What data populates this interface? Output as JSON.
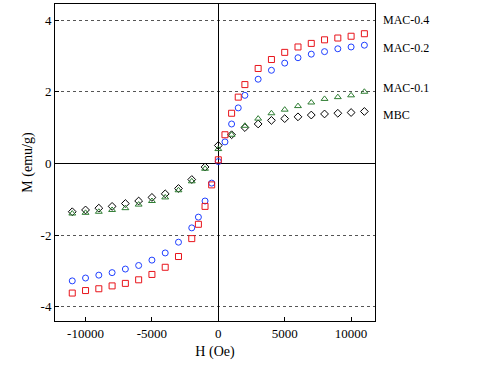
{
  "chart_data": {
    "type": "scatter",
    "x_label": "H (Oe)",
    "y_label": "M (emu/g)",
    "xlim": [
      -12300,
      11800
    ],
    "ylim": [
      -4.4,
      4.45
    ],
    "xticks": [
      -10000,
      -5000,
      0,
      5000,
      10000
    ],
    "yticks": [
      -4,
      -2,
      0,
      2,
      4
    ],
    "grid": true,
    "series": [
      {
        "name": "MBC",
        "color": "#000000",
        "marker": "diamond",
        "x": [
          -11000,
          -10000,
          -9000,
          -8000,
          -7000,
          -6000,
          -5000,
          -4000,
          -3000,
          -2000,
          -1000,
          0,
          1000,
          2000,
          3000,
          4000,
          5000,
          6000,
          7000,
          8000,
          9000,
          10000,
          11000
        ],
        "values": [
          -1.35,
          -1.3,
          -1.25,
          -1.2,
          -1.12,
          -1.05,
          -0.95,
          -0.85,
          -0.7,
          -0.45,
          -0.1,
          0.5,
          0.8,
          1.0,
          1.1,
          1.2,
          1.25,
          1.3,
          1.35,
          1.38,
          1.4,
          1.42,
          1.45
        ]
      },
      {
        "name": "MAC-0.1",
        "color": "#2e7d32",
        "marker": "triangle",
        "x": [
          -11000,
          -10000,
          -9000,
          -8000,
          -7000,
          -6000,
          -5000,
          -4000,
          -3000,
          -2000,
          -1000,
          0,
          1000,
          2000,
          3000,
          4000,
          5000,
          6000,
          7000,
          8000,
          9000,
          10000,
          11000
        ],
        "values": [
          -1.4,
          -1.38,
          -1.35,
          -1.3,
          -1.25,
          -1.15,
          -1.05,
          -0.95,
          -0.75,
          -0.5,
          -0.15,
          0.4,
          0.8,
          1.05,
          1.25,
          1.4,
          1.5,
          1.6,
          1.7,
          1.8,
          1.85,
          1.9,
          2.0
        ]
      },
      {
        "name": "MAC-0.2",
        "color": "#1f3fff",
        "marker": "circle",
        "x": [
          -11000,
          -10000,
          -9000,
          -8000,
          -7000,
          -6000,
          -5000,
          -4000,
          -3000,
          -2000,
          -1500,
          -1000,
          -500,
          0,
          500,
          1000,
          1500,
          2000,
          3000,
          4000,
          5000,
          6000,
          7000,
          8000,
          9000,
          10000,
          11000
        ],
        "values": [
          -3.28,
          -3.2,
          -3.12,
          -3.05,
          -2.95,
          -2.85,
          -2.7,
          -2.5,
          -2.2,
          -1.8,
          -1.5,
          -1.05,
          -0.55,
          0.05,
          0.6,
          1.1,
          1.55,
          1.9,
          2.35,
          2.6,
          2.8,
          2.95,
          3.05,
          3.12,
          3.2,
          3.25,
          3.3
        ]
      },
      {
        "name": "MAC-0.4",
        "color": "#e8141b",
        "marker": "square",
        "x": [
          -11000,
          -10000,
          -9000,
          -8000,
          -7000,
          -6000,
          -5000,
          -4000,
          -3000,
          -2000,
          -1500,
          -1000,
          -500,
          0,
          500,
          1000,
          1500,
          2000,
          3000,
          4000,
          5000,
          6000,
          7000,
          8000,
          9000,
          10000,
          11000
        ],
        "values": [
          -3.62,
          -3.55,
          -3.5,
          -3.42,
          -3.35,
          -3.25,
          -3.1,
          -2.9,
          -2.6,
          -2.1,
          -1.7,
          -1.2,
          -0.6,
          0.1,
          0.8,
          1.4,
          1.85,
          2.2,
          2.65,
          2.9,
          3.1,
          3.25,
          3.35,
          3.45,
          3.5,
          3.55,
          3.62
        ]
      }
    ]
  }
}
